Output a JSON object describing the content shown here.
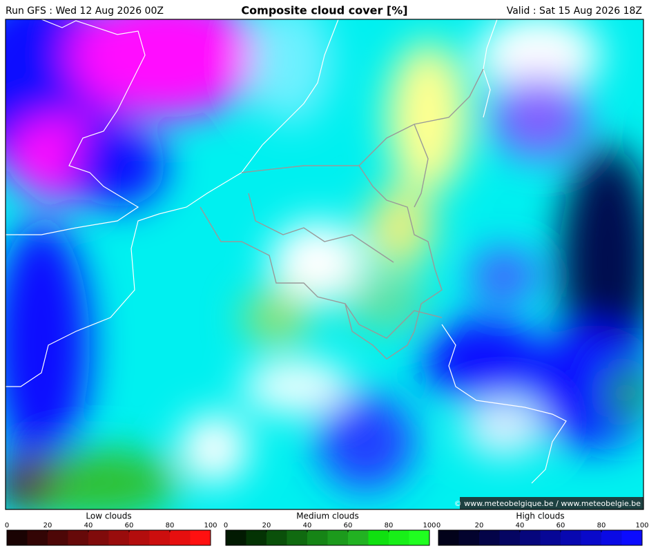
{
  "header": {
    "left": "Run GFS : Wed 12 Aug 2026 00Z",
    "title": "Composite cloud cover [%]",
    "right": "Valid : Sat 15 Aug 2026 18Z"
  },
  "credit": "© www.meteobelgique.be / www.meteobelgie.be",
  "legends": [
    {
      "title": "Low clouds",
      "ticks": [
        0,
        20,
        40,
        60,
        80,
        100
      ],
      "colors": [
        "#1a0303",
        "#330505",
        "#4d0707",
        "#660909",
        "#800b0b",
        "#990c0c",
        "#b30d0d",
        "#cc0e0e",
        "#e60f0f",
        "#ff1010"
      ]
    },
    {
      "title": "Medium clouds",
      "ticks": [
        0,
        20,
        40,
        60,
        80,
        100
      ],
      "colors": [
        "#021a02",
        "#043304",
        "#0a500a",
        "#106a10",
        "#168416",
        "#1c9a1c",
        "#22b222",
        "#10e010",
        "#18ef18",
        "#20ff20"
      ]
    },
    {
      "title": "High clouds",
      "ticks": [
        0,
        20,
        40,
        60,
        80,
        100
      ],
      "colors": [
        "#02021a",
        "#03032e",
        "#040448",
        "#050562",
        "#06067c",
        "#070796",
        "#0808b0",
        "#0909ca",
        "#0a0ae4",
        "#0b0bff"
      ]
    }
  ]
}
